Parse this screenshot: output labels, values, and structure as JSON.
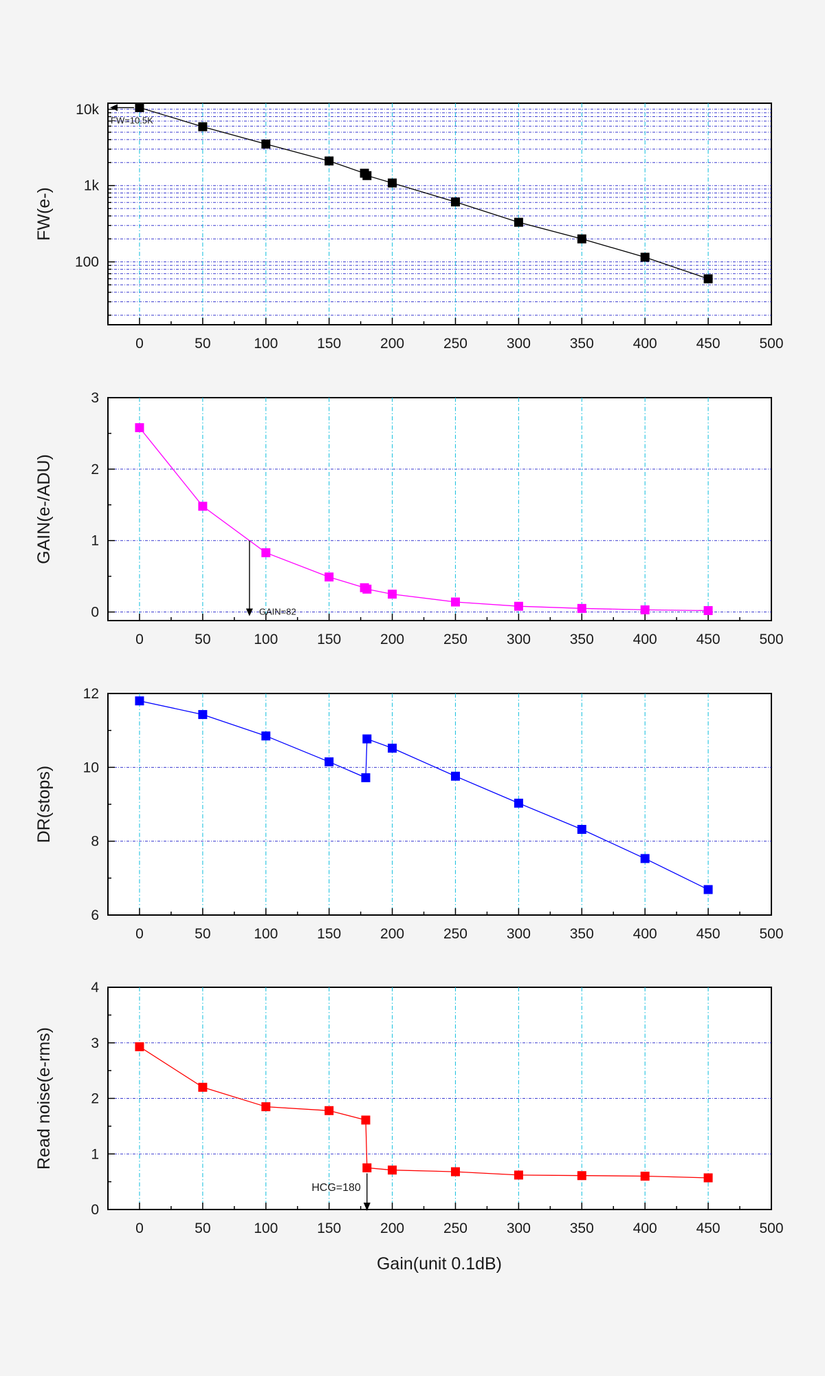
{
  "x_axis": {
    "label": "Gain(unit 0.1dB)",
    "range": [
      -25,
      500
    ],
    "ticks": [
      "0",
      "50",
      "100",
      "150",
      "200",
      "250",
      "300",
      "350",
      "400",
      "450",
      "500"
    ]
  },
  "chart_data": [
    {
      "type": "line",
      "scale": "log",
      "ylabel": "FW(e-)",
      "xlim": [
        -25,
        500
      ],
      "ylim": [
        15,
        12000
      ],
      "yticks": [
        100,
        1000,
        10000
      ],
      "ytick_labels": [
        "100",
        "1k",
        "10k"
      ],
      "color": "#000000",
      "series": [
        {
          "name": "FW",
          "x": [
            0,
            50,
            100,
            150,
            178,
            180,
            200,
            250,
            300,
            350,
            400,
            450
          ],
          "values": [
            10500,
            5900,
            3500,
            2100,
            1450,
            1350,
            1080,
            610,
            330,
            200,
            115,
            60
          ]
        }
      ],
      "annotation": {
        "text": "FW=10.5K",
        "x": 0,
        "y": 10500
      }
    },
    {
      "type": "line",
      "scale": "linear",
      "ylabel": "GAIN(e-/ADU)",
      "xlim": [
        -25,
        500
      ],
      "ylim": [
        -0.12,
        3
      ],
      "yticks": [
        0,
        1,
        2,
        3
      ],
      "ytick_labels": [
        "0",
        "1",
        "2",
        "3"
      ],
      "color": "#ff00ff",
      "series": [
        {
          "name": "GAIN",
          "x": [
            0,
            50,
            100,
            150,
            178,
            180,
            200,
            250,
            300,
            350,
            400,
            450
          ],
          "values": [
            2.58,
            1.48,
            0.83,
            0.49,
            0.34,
            0.32,
            0.25,
            0.14,
            0.08,
            0.05,
            0.03,
            0.02
          ]
        }
      ],
      "annotation": {
        "text": "GAIN=82",
        "x": 87,
        "y": 1.0
      }
    },
    {
      "type": "line",
      "scale": "linear",
      "ylabel": "DR(stops)",
      "xlim": [
        -25,
        500
      ],
      "ylim": [
        6,
        12
      ],
      "yticks": [
        6,
        8,
        10,
        12
      ],
      "ytick_labels": [
        "6",
        "8",
        "10",
        "12"
      ],
      "color": "#0000ff",
      "series": [
        {
          "name": "DR",
          "x": [
            0,
            50,
            100,
            150,
            179,
            180,
            200,
            250,
            300,
            350,
            400,
            450
          ],
          "values": [
            11.8,
            11.43,
            10.85,
            10.15,
            9.72,
            10.77,
            10.52,
            9.76,
            9.03,
            8.32,
            7.53,
            6.69
          ]
        }
      ]
    },
    {
      "type": "line",
      "scale": "linear",
      "ylabel": "Read noise(e-rms)",
      "xlim": [
        -25,
        500
      ],
      "ylim": [
        0,
        4
      ],
      "yticks": [
        0,
        1,
        2,
        3,
        4
      ],
      "ytick_labels": [
        "0",
        "1",
        "2",
        "3",
        "4"
      ],
      "color": "#ff0000",
      "series": [
        {
          "name": "Read noise",
          "x": [
            0,
            50,
            100,
            150,
            179,
            180,
            200,
            250,
            300,
            350,
            400,
            450
          ],
          "values": [
            2.93,
            2.2,
            1.85,
            1.78,
            1.61,
            0.75,
            0.71,
            0.68,
            0.62,
            0.61,
            0.6,
            0.57
          ]
        }
      ],
      "annotation": {
        "text": "HCG=180",
        "x": 180,
        "y": 0.75
      }
    }
  ]
}
